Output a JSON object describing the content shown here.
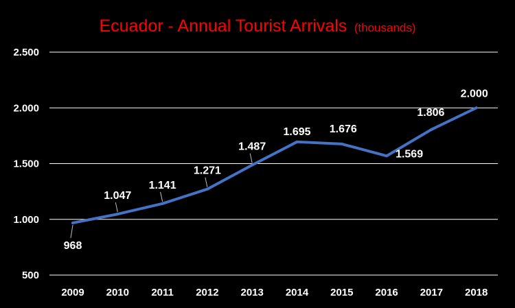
{
  "chart_data": {
    "type": "line",
    "title": "Ecuador - Annual Tourist Arrivals",
    "subtitle": "(thousands)",
    "xlabel": "",
    "ylabel": "",
    "ylim": [
      500,
      2500
    ],
    "y_ticks": [
      "2.500",
      "2.000",
      "1.500",
      "1.000",
      "500"
    ],
    "y_tick_values": [
      2500,
      2000,
      1500,
      1000,
      500
    ],
    "grid": true,
    "legend": "none",
    "categories": [
      "2009",
      "2010",
      "2011",
      "2012",
      "2013",
      "2014",
      "2015",
      "2016",
      "2017",
      "2018"
    ],
    "series": [
      {
        "values": [
          968,
          1047,
          1141,
          1271,
          1487,
          1695,
          1676,
          1569,
          1806,
          2000
        ],
        "labels": [
          "968",
          "1.047",
          "1.141",
          "1.271",
          "1.487",
          "1.695",
          "1.676",
          "1.569",
          "1.806",
          "2.000"
        ],
        "color": "#4472c4"
      }
    ],
    "colors": {
      "background": "#000000",
      "title": "#ff0000",
      "text": "#ffffff",
      "gridline": "#ffffff",
      "leader": "#bfbfbf"
    }
  }
}
